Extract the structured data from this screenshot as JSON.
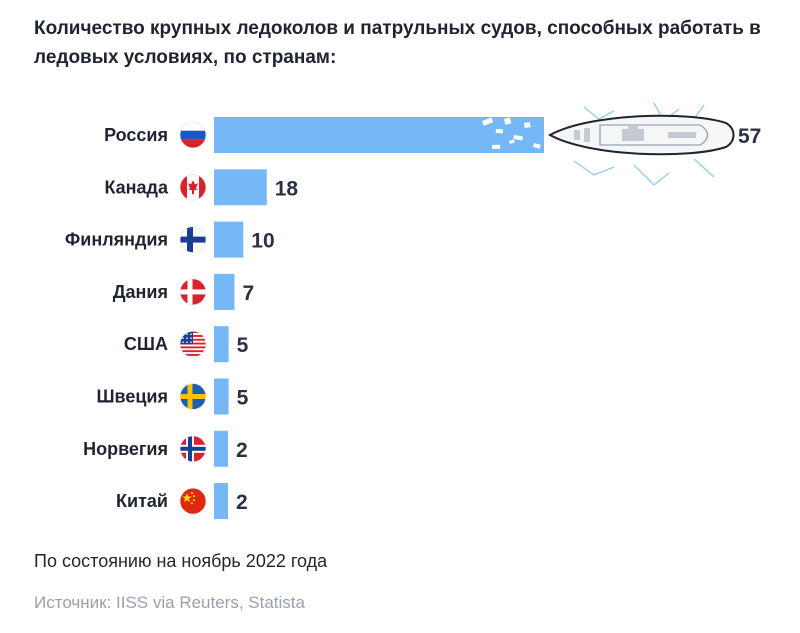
{
  "title": "Количество крупных ледоколов и патрульных судов, способных работать в ледовых условиях, по странам:",
  "note": "По состоянию на ноябрь 2022 года",
  "source": "Источник: IISS via Reuters, Statista",
  "colors": {
    "bar": "#76b8f5",
    "text": "#1f2430",
    "muted": "#9aa1ab"
  },
  "chart_data": {
    "type": "bar",
    "orientation": "horizontal",
    "title": "Количество крупных ледоколов и патрульных судов, способных работать в ледовых условиях, по странам:",
    "categories": [
      "Россия",
      "Канада",
      "Финляндия",
      "Дания",
      "США",
      "Швеция",
      "Норвегия",
      "Китай"
    ],
    "values": [
      57,
      18,
      10,
      7,
      5,
      5,
      2,
      2
    ],
    "flags": [
      "russia-flag-icon",
      "canada-flag-icon",
      "finland-flag-icon",
      "denmark-flag-icon",
      "usa-flag-icon",
      "sweden-flag-icon",
      "norway-flag-icon",
      "china-flag-icon"
    ],
    "xlabel": "",
    "ylabel": "",
    "grid": false,
    "legend": "none"
  }
}
